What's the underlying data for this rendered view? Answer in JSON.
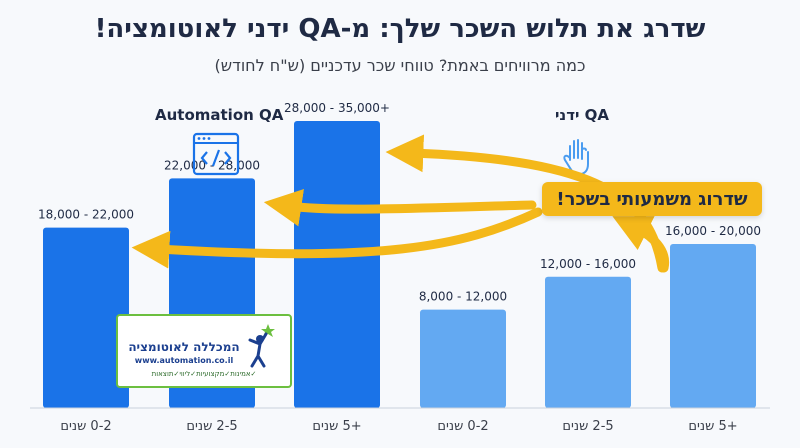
{
  "header": {
    "title": "שדרג את תלוש השכר שלך: מ-QA ידני לאוטומציה!",
    "subtitle": "כמה מרוויחים באמת? טווחי שכר עדכניים (ש\"ח לחודש)"
  },
  "groups": {
    "automation_label": "Automation QA",
    "manual_label": "QA ידני"
  },
  "callout": {
    "text": "שדרוג משמעותי בשכר!"
  },
  "logo": {
    "title": "המכללה לאוטומציה",
    "url": "www.automation.co.il",
    "tagline": "✓אמינות✓מקצועיות✓ליווי✓תוצאות"
  },
  "colors": {
    "automation_bar": "#1a73e8",
    "manual_bar": "#63a9f2",
    "arrow": "#f4b81a",
    "text": "#1f2a44"
  },
  "icons": [
    "code-window-icon",
    "hand-icon",
    "logo-figure-icon"
  ],
  "chart_data": {
    "type": "bar",
    "title": "שדרג את תלוש השכר שלך: מ-QA ידני לאוטומציה!",
    "subtitle": "כמה מרוויחים באמת? טווחי שכר עדכניים (ש\"ח לחודש)",
    "categories": [
      "0-2 שנים",
      "2-5 שנים",
      "+5 שנים",
      "0-2 שנים",
      "2-5 שנים",
      "+5 שנים"
    ],
    "series": [
      {
        "name": "Automation QA",
        "low": [
          18000,
          22000,
          28000
        ],
        "high": [
          22000,
          28000,
          35000
        ],
        "labels": [
          "18,000 - 22,000",
          "22,000 - 28,000",
          "28,000 - 35,000+"
        ]
      },
      {
        "name": "QA ידני",
        "low": [
          8000,
          12000,
          16000
        ],
        "high": [
          12000,
          16000,
          20000
        ],
        "labels": [
          "8,000 - 12,000",
          "12,000 - 16,000",
          "16,000 - 20,000"
        ]
      }
    ],
    "ylim": [
      0,
      40000
    ],
    "grid": false
  }
}
